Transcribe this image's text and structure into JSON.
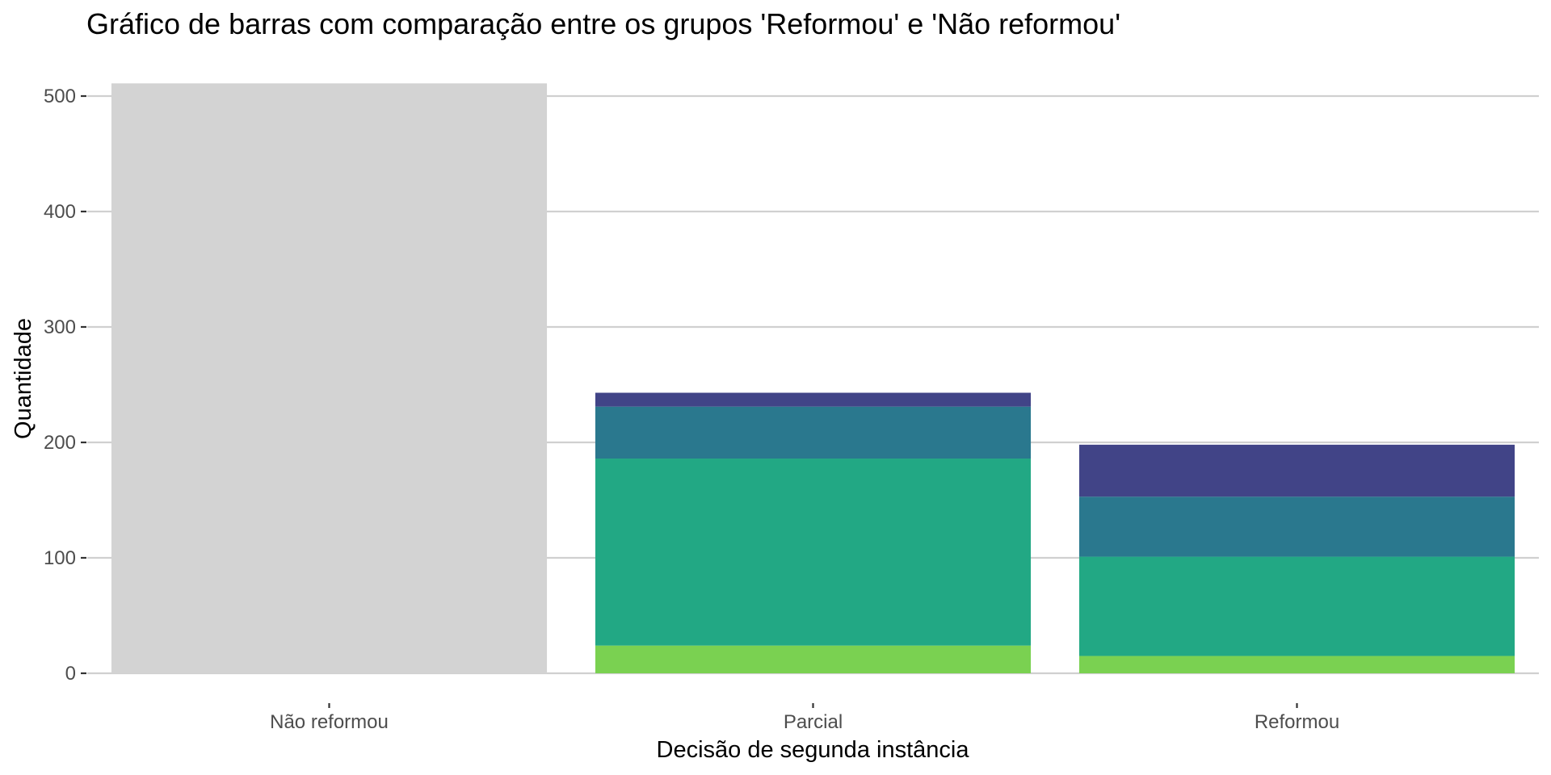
{
  "chart_data": {
    "type": "bar",
    "stacked": true,
    "title": "Gráfico de barras com comparação entre os grupos 'Reformou' e 'Não reformou'",
    "xlabel": "Decisão de segunda instância",
    "ylabel": "Quantidade",
    "categories": [
      "Não reformou",
      "Parcial",
      "Reformou"
    ],
    "ylim": [
      0,
      515
    ],
    "yticks": [
      0,
      100,
      200,
      300,
      400,
      500
    ],
    "grid": "horizontal",
    "legend": "none",
    "series": [
      {
        "values": [
          511,
          0,
          0
        ],
        "color": "#d3d3d3"
      },
      {
        "values": [
          0,
          24,
          15
        ],
        "color": "#7ad151"
      },
      {
        "values": [
          0,
          162,
          86
        ],
        "color": "#22a884"
      },
      {
        "values": [
          0,
          45,
          52
        ],
        "color": "#2a788e"
      },
      {
        "values": [
          0,
          12,
          45
        ],
        "color": "#414487"
      }
    ]
  }
}
